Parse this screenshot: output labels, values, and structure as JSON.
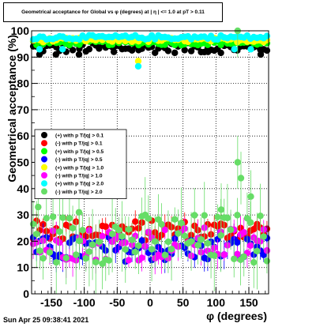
{
  "title": "Geometrical acceptance for Global vs φ (degrees) at | η | <= 1.0 at pT > 0.11",
  "timestamp": "Sun Apr 25 09:38:41 2021",
  "chart_data": {
    "type": "scatter",
    "xlabel": "φ (degrees)",
    "ylabel": "Geometrical acceptance (%)",
    "xlim": [
      -180,
      180
    ],
    "ylim": [
      0,
      100
    ],
    "x_ticks": [
      -150,
      -100,
      -50,
      0,
      50,
      100,
      150
    ],
    "y_ticks": [
      0,
      10,
      20,
      30,
      40,
      50,
      60,
      70,
      80,
      90,
      100
    ],
    "grid": true,
    "legend_position": "left-middle",
    "bins": 72,
    "series": [
      {
        "name": "(+) with p T/|q| > 0.1",
        "color": "#000000",
        "mean": 93.5,
        "scatter": 1.2,
        "err": 0.8,
        "outliers": [
          [
            -168,
            91
          ],
          [
            -143,
            91
          ],
          [
            -108,
            91
          ],
          [
            -55,
            92
          ],
          [
            168,
            91
          ],
          [
            88,
            92
          ]
        ]
      },
      {
        "name": "(-) with p T/|q| > 0.1",
        "color": "#ff0000",
        "mean": 24,
        "scatter": 2.5,
        "err": 3
      },
      {
        "name": "(+) with p T/|q| > 0.5",
        "color": "#00ff00",
        "mean": 95.5,
        "scatter": 0.6,
        "err": 0.6
      },
      {
        "name": "(-) with p T/|q| > 0.5",
        "color": "#0000ff",
        "mean": 17,
        "scatter": 3,
        "err": 4
      },
      {
        "name": "(+) with p T/|q| > 1.0",
        "color": "#ffff00",
        "mean": 96.5,
        "scatter": 0.5,
        "err": 0.5,
        "outliers": [
          [
            -18,
            88.5
          ]
        ]
      },
      {
        "name": "(-) with p T/|q| > 1.0",
        "color": "#ff00ff",
        "mean": 19,
        "scatter": 4,
        "err": 5
      },
      {
        "name": "(+) with p T/|q| > 2.0",
        "color": "#00ffff",
        "mean": 97.5,
        "scatter": 0.5,
        "err": 0.6,
        "outliers": [
          [
            -168,
            93
          ],
          [
            -133,
            93
          ],
          [
            -18,
            86.5
          ],
          [
            128,
            93
          ],
          [
            153,
            93
          ]
        ]
      },
      {
        "name": "(-) with p T/|q| > 2.0",
        "color": "#66dd66",
        "mean": 21,
        "scatter": 6,
        "err": 10,
        "outliers": [
          [
            133,
            50
          ],
          [
            138,
            44
          ],
          [
            -170,
            33
          ],
          [
            -108,
            31
          ],
          [
            108,
            32
          ],
          [
            153,
            37
          ],
          [
            133,
            100
          ]
        ]
      }
    ]
  }
}
